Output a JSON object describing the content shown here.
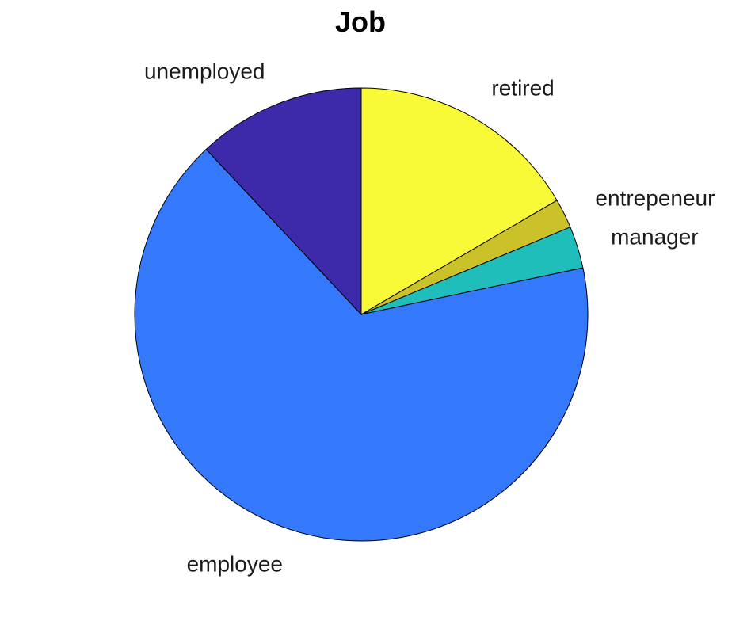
{
  "chart_data": {
    "type": "pie",
    "title": "Job",
    "start": "top, clockwise",
    "slices": [
      {
        "label": "retired",
        "value": 16.6,
        "color": "#F8FA38"
      },
      {
        "label": "entrepeneur",
        "value": 2.1,
        "color": "#CBC22A"
      },
      {
        "label": "manager",
        "value": 3.0,
        "color": "#20BEBA"
      },
      {
        "label": "employee",
        "value": 66.3,
        "color": "#3479FC"
      },
      {
        "label": "unemployed",
        "value": 12.0,
        "color": "#3D2AAA"
      }
    ]
  }
}
